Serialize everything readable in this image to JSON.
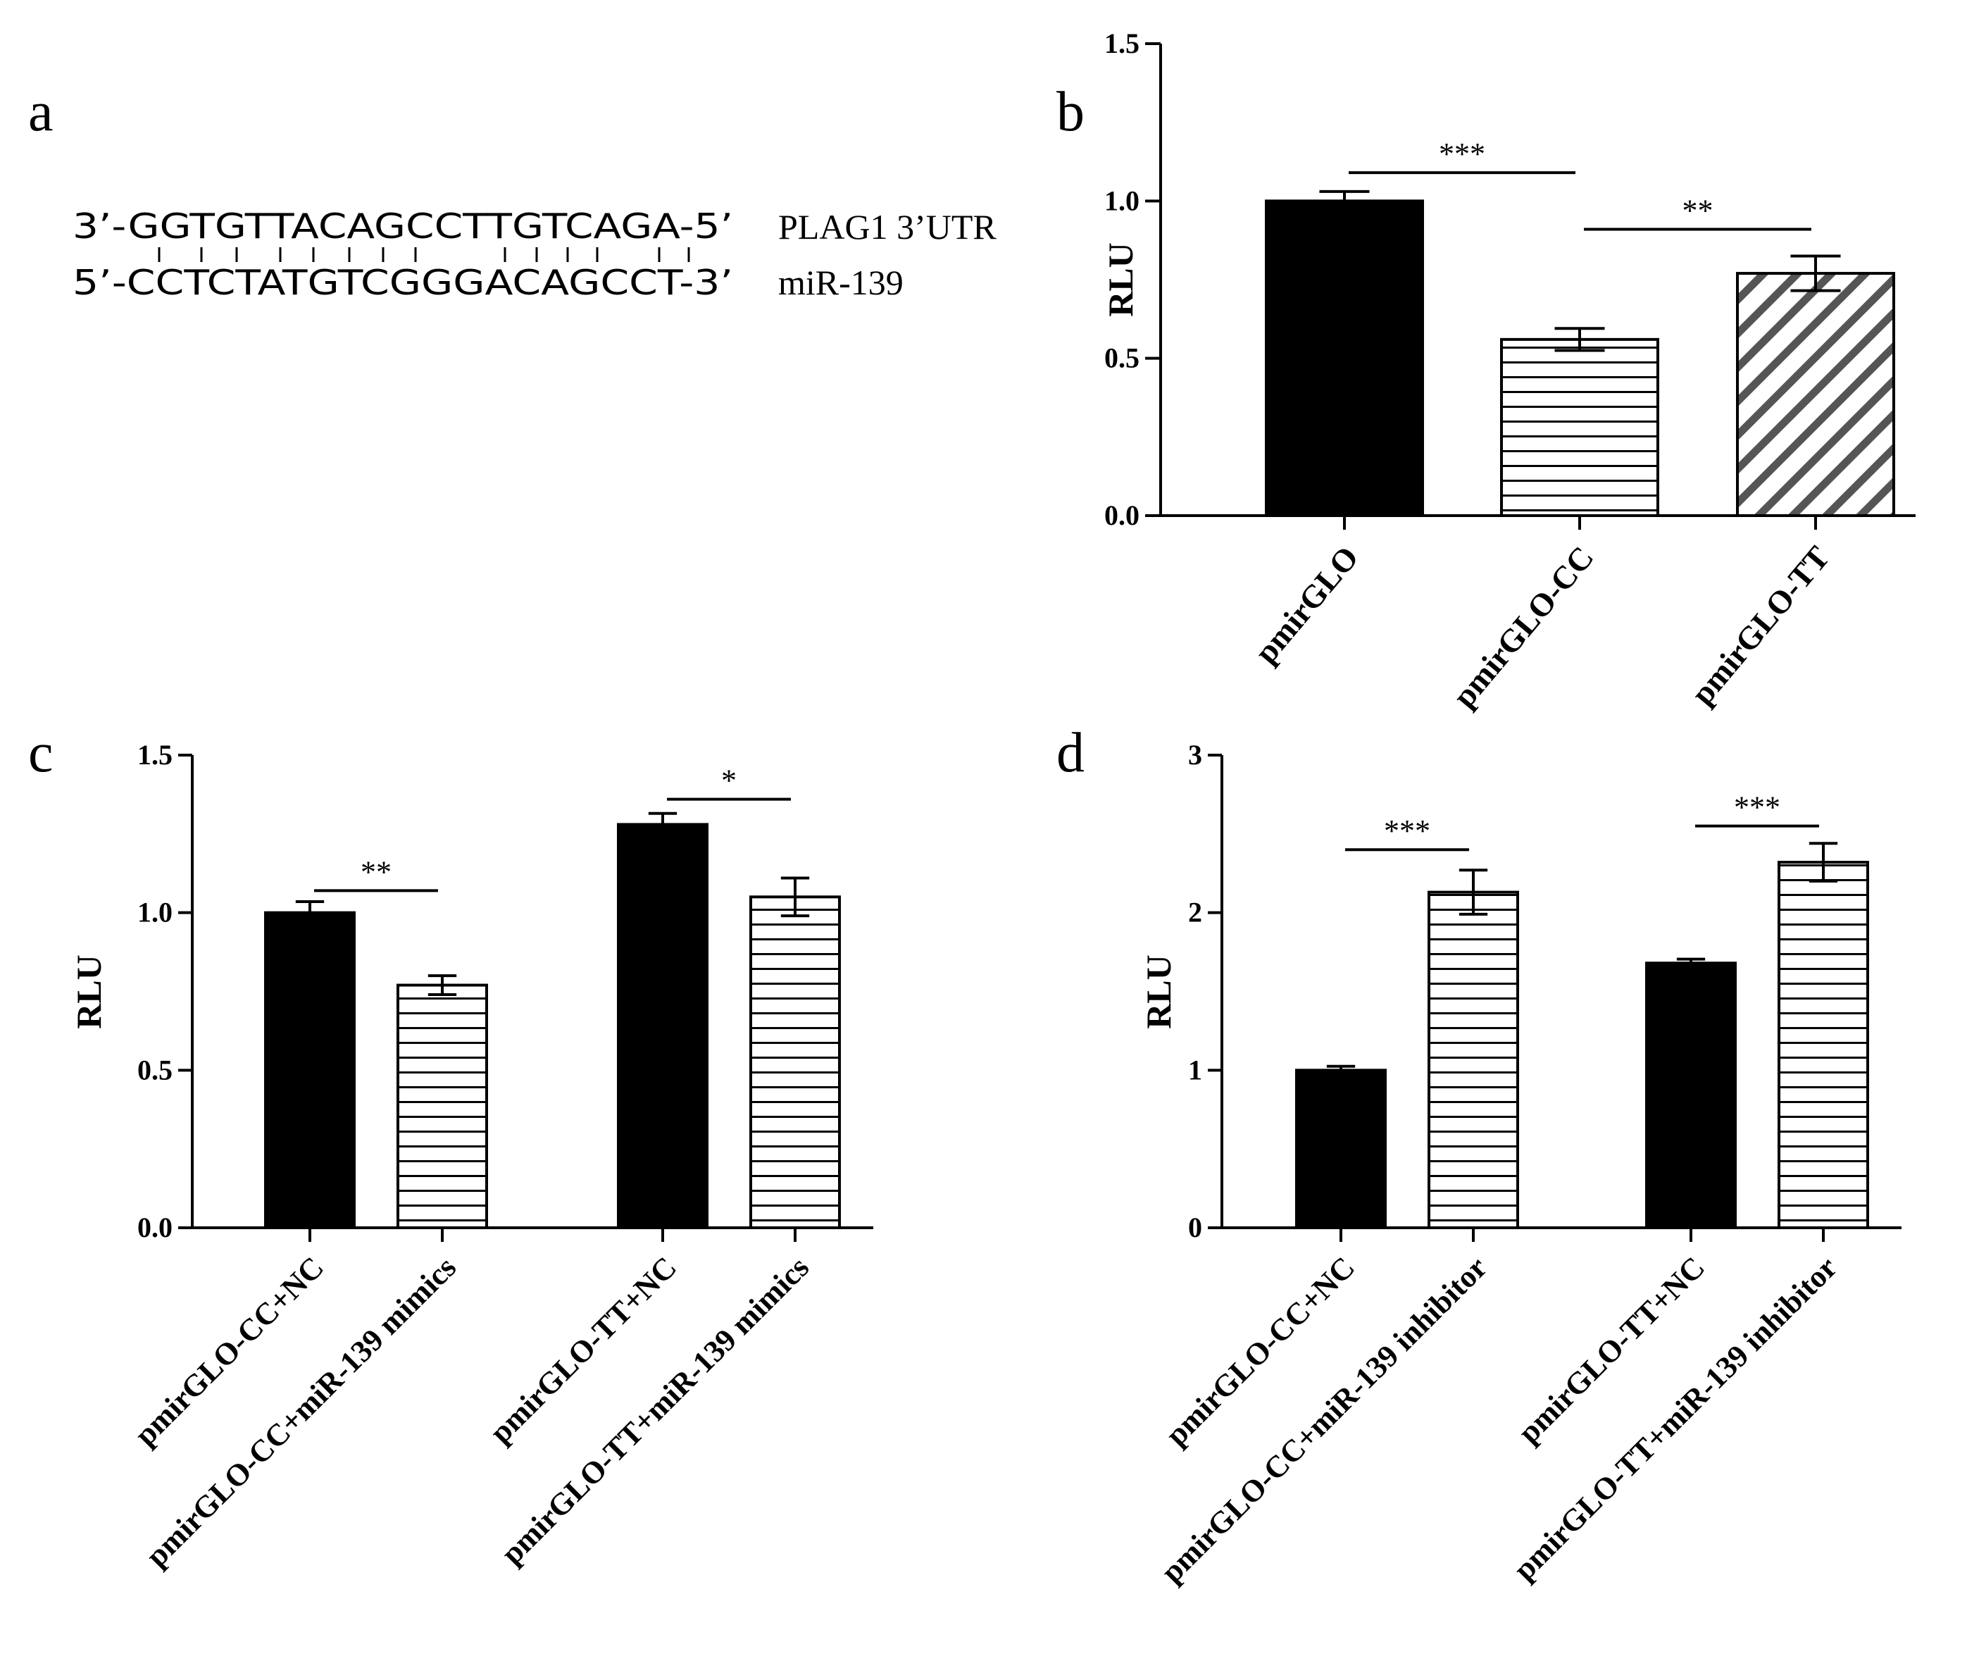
{
  "colors": {
    "ink": "#000000",
    "paper": "#ffffff",
    "hatch": "#555555"
  },
  "panel_a": {
    "letter": "a",
    "top_seq": "3’-GGTGTTACAGCCTTGTCAGA-5’",
    "bottom_seq": "5’-CCTCTATGTCGGGACAGCCT-3’",
    "top_label": "PLAG1 3’UTR",
    "bottom_label": "miR-139"
  },
  "chart_data": [
    {
      "panel": "b",
      "type": "bar",
      "ylabel": "RLU",
      "ylim": [
        0,
        1.5
      ],
      "yticks": [
        "0.0",
        "0.5",
        "1.0",
        "1.5"
      ],
      "categories": [
        "pmirGLO",
        "pmirGLO-CC",
        "pmirGLO-TT"
      ],
      "values": [
        1.0,
        0.56,
        0.77
      ],
      "errors": [
        0.03,
        0.035,
        0.055
      ],
      "fills": [
        "solid",
        "hlines",
        "diagonal"
      ],
      "significance": [
        {
          "from": 0,
          "to": 1,
          "label": "***",
          "y": 1.09
        },
        {
          "from": 1,
          "to": 2,
          "label": "**",
          "y": 0.91
        }
      ]
    },
    {
      "panel": "c",
      "type": "bar",
      "ylabel": "RLU",
      "ylim": [
        0,
        1.5
      ],
      "yticks": [
        "0.0",
        "0.5",
        "1.0",
        "1.5"
      ],
      "categories": [
        "pmirGLO-CC+NC",
        "pmirGLO-CC+miR-139 mimics",
        "pmirGLO-TT+NC",
        "pmirGLO-TT+miR-139 mimics"
      ],
      "values": [
        1.0,
        0.77,
        1.28,
        1.05
      ],
      "errors": [
        0.035,
        0.03,
        0.035,
        0.06
      ],
      "fills": [
        "solid",
        "hlines",
        "solid",
        "hlines"
      ],
      "significance": [
        {
          "from": 0,
          "to": 1,
          "label": "**",
          "y": 1.07
        },
        {
          "from": 2,
          "to": 3,
          "label": "*",
          "y": 1.36
        }
      ]
    },
    {
      "panel": "d",
      "type": "bar",
      "ylabel": "RLU",
      "ylim": [
        0,
        3
      ],
      "yticks": [
        "0",
        "1",
        "2",
        "3"
      ],
      "categories": [
        "pmirGLO-CC+NC",
        "pmirGLO-CC+miR-139 inhibitor",
        "pmirGLO-TT+NC",
        "pmirGLO-TT+miR-139 inhibitor"
      ],
      "values": [
        1.0,
        2.13,
        1.68,
        2.32
      ],
      "errors": [
        0.025,
        0.14,
        0.025,
        0.12
      ],
      "fills": [
        "solid",
        "hlines",
        "solid",
        "hlines"
      ],
      "significance": [
        {
          "from": 0,
          "to": 1,
          "label": "***",
          "y": 2.4
        },
        {
          "from": 2,
          "to": 3,
          "label": "***",
          "y": 2.55
        }
      ]
    }
  ]
}
